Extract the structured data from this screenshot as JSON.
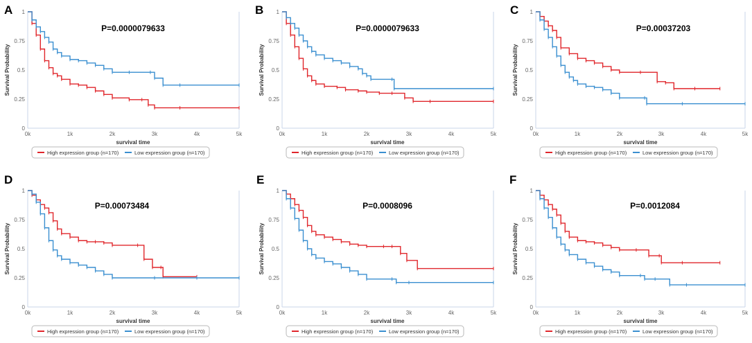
{
  "figure": {
    "colors": {
      "high": "#e0262b",
      "low": "#3a8fd0",
      "axis": "#c9d6e8",
      "tick_text": "#666666",
      "label_text": "#333333"
    },
    "panels": [
      {
        "label": "A",
        "p_value": "P=0.0000079633",
        "ylabel": "Survival Probability",
        "xlabel": "survival time",
        "x_ticks": [
          "0k",
          "1k",
          "2k",
          "3k",
          "4k",
          "5k"
        ],
        "y_ticks": [
          "0",
          "0.25",
          "0.5",
          "0.75",
          "1"
        ],
        "legend": {
          "high": "High expression group (n=170)",
          "low": "Low expression group (n=170)"
        }
      },
      {
        "label": "B",
        "p_value": "P=0.0000079633",
        "ylabel": "Survival Probability",
        "xlabel": "survival time",
        "x_ticks": [
          "0k",
          "1k",
          "2k",
          "3k",
          "4k",
          "5k"
        ],
        "y_ticks": [
          "0",
          "0.25",
          "0.5",
          "0.75",
          "1"
        ],
        "legend": {
          "high": "High expression group (n=170)",
          "low": "Low expression group (n=170)"
        }
      },
      {
        "label": "C",
        "p_value": "P=0.00037203",
        "ylabel": "Survival Probability",
        "xlabel": "survival time",
        "x_ticks": [
          "0k",
          "1k",
          "2k",
          "3k",
          "4k",
          "5k"
        ],
        "y_ticks": [
          "0",
          "0.25",
          "0.5",
          "0.75",
          "1"
        ],
        "legend": {
          "high": "High expression group (n=170)",
          "low": "Low expression group (n=170)"
        }
      },
      {
        "label": "D",
        "p_value": "P=0.00073484",
        "ylabel": "Survival Probability",
        "xlabel": "survival time",
        "x_ticks": [
          "0k",
          "1k",
          "2k",
          "3k",
          "4k",
          "5k"
        ],
        "y_ticks": [
          "0",
          "0.25",
          "0.5",
          "0.75",
          "1"
        ],
        "legend": {
          "high": "High expression group (n=170)",
          "low": "Low expression group (n=170)"
        }
      },
      {
        "label": "E",
        "p_value": "P=0.0008096",
        "ylabel": "Survival Probability",
        "xlabel": "survival time",
        "x_ticks": [
          "0k",
          "1k",
          "2k",
          "3k",
          "4k",
          "5k"
        ],
        "y_ticks": [
          "0",
          "0.25",
          "0.5",
          "0.75",
          "1"
        ],
        "legend": {
          "high": "High expression group (n=170)",
          "low": "Low expression group (n=170)"
        }
      },
      {
        "label": "F",
        "p_value": "P=0.0012084",
        "ylabel": "Survival Probability",
        "xlabel": "survival time",
        "x_ticks": [
          "0k",
          "1k",
          "2k",
          "3k",
          "4k",
          "5k"
        ],
        "y_ticks": [
          "0",
          "0.25",
          "0.5",
          "0.75",
          "1"
        ],
        "legend": {
          "high": "High expression group (n=170)",
          "low": "Low expression group (n=170)"
        }
      }
    ]
  },
  "chart_data": [
    {
      "type": "line",
      "title": "P=0.0000079633",
      "xlabel": "survival time",
      "ylabel": "Survival Probability",
      "xlim": [
        0,
        5000
      ],
      "ylim": [
        0,
        1
      ],
      "series": [
        {
          "name": "High expression group (n=170)",
          "x": [
            0,
            100,
            200,
            300,
            400,
            500,
            600,
            700,
            800,
            1000,
            1200,
            1400,
            1600,
            1800,
            2000,
            2400,
            2700,
            2850,
            3000,
            3600,
            5000
          ],
          "values": [
            1,
            0.9,
            0.8,
            0.68,
            0.58,
            0.52,
            0.47,
            0.45,
            0.42,
            0.38,
            0.37,
            0.35,
            0.32,
            0.29,
            0.26,
            0.245,
            0.245,
            0.2,
            0.175,
            0.175,
            0.175
          ]
        },
        {
          "name": "Low expression group (n=170)",
          "x": [
            0,
            100,
            200,
            300,
            400,
            500,
            600,
            700,
            800,
            1000,
            1200,
            1400,
            1600,
            1800,
            2000,
            2400,
            2900,
            3000,
            3200,
            3600,
            5000
          ],
          "values": [
            1,
            0.93,
            0.87,
            0.83,
            0.78,
            0.74,
            0.68,
            0.65,
            0.62,
            0.59,
            0.58,
            0.56,
            0.54,
            0.51,
            0.48,
            0.48,
            0.48,
            0.43,
            0.37,
            0.37,
            0.37
          ]
        }
      ]
    },
    {
      "type": "line",
      "title": "P=0.0000079633",
      "xlabel": "survival time",
      "ylabel": "Survival Probability",
      "xlim": [
        0,
        5000
      ],
      "ylim": [
        0,
        1
      ],
      "series": [
        {
          "name": "High expression group (n=170)",
          "x": [
            0,
            100,
            200,
            300,
            400,
            500,
            600,
            700,
            800,
            1000,
            1300,
            1500,
            1800,
            2000,
            2300,
            2600,
            2900,
            3100,
            3500,
            5000
          ],
          "values": [
            1,
            0.9,
            0.8,
            0.7,
            0.6,
            0.51,
            0.45,
            0.41,
            0.38,
            0.36,
            0.35,
            0.33,
            0.32,
            0.31,
            0.3,
            0.3,
            0.26,
            0.23,
            0.23,
            0.23
          ]
        },
        {
          "name": "Low expression group (n=170)",
          "x": [
            0,
            100,
            200,
            300,
            400,
            500,
            600,
            700,
            800,
            1000,
            1200,
            1400,
            1600,
            1800,
            1900,
            2000,
            2100,
            2600,
            2650,
            5000
          ],
          "values": [
            1,
            0.95,
            0.9,
            0.86,
            0.8,
            0.75,
            0.7,
            0.66,
            0.63,
            0.6,
            0.58,
            0.56,
            0.53,
            0.51,
            0.47,
            0.45,
            0.42,
            0.42,
            0.34,
            0.34
          ]
        }
      ]
    },
    {
      "type": "line",
      "title": "P=0.00037203",
      "xlabel": "survival time",
      "ylabel": "Survival Probability",
      "xlim": [
        0,
        5000
      ],
      "ylim": [
        0,
        1
      ],
      "series": [
        {
          "name": "High expression group (n=170)",
          "x": [
            0,
            100,
            200,
            300,
            400,
            500,
            600,
            800,
            1000,
            1200,
            1400,
            1600,
            1800,
            2000,
            2500,
            2900,
            3100,
            3300,
            3800,
            4400
          ],
          "values": [
            1,
            0.96,
            0.92,
            0.88,
            0.84,
            0.78,
            0.69,
            0.64,
            0.6,
            0.58,
            0.56,
            0.53,
            0.5,
            0.48,
            0.48,
            0.4,
            0.39,
            0.34,
            0.34,
            0.34
          ]
        },
        {
          "name": "Low expression group (n=170)",
          "x": [
            0,
            100,
            200,
            300,
            400,
            500,
            600,
            700,
            800,
            900,
            1000,
            1200,
            1400,
            1600,
            1800,
            2000,
            2600,
            2650,
            3500,
            5000
          ],
          "values": [
            1,
            0.93,
            0.85,
            0.78,
            0.7,
            0.62,
            0.54,
            0.48,
            0.44,
            0.41,
            0.38,
            0.36,
            0.35,
            0.33,
            0.3,
            0.26,
            0.26,
            0.21,
            0.21,
            0.21
          ]
        }
      ]
    },
    {
      "type": "line",
      "title": "P=0.00073484",
      "xlabel": "survival time",
      "ylabel": "Survival Probability",
      "xlim": [
        0,
        5000
      ],
      "ylim": [
        0,
        1
      ],
      "series": [
        {
          "name": "High expression group (n=170)",
          "x": [
            0,
            100,
            200,
            300,
            400,
            500,
            600,
            700,
            800,
            1000,
            1200,
            1400,
            1600,
            1800,
            2000,
            2600,
            2750,
            2950,
            3150,
            3200,
            4000
          ],
          "values": [
            1,
            0.96,
            0.92,
            0.88,
            0.85,
            0.81,
            0.74,
            0.67,
            0.63,
            0.6,
            0.57,
            0.56,
            0.56,
            0.55,
            0.53,
            0.53,
            0.41,
            0.34,
            0.34,
            0.26,
            0.26
          ]
        },
        {
          "name": "Low expression group (n=170)",
          "x": [
            0,
            100,
            200,
            300,
            400,
            500,
            600,
            700,
            800,
            1000,
            1200,
            1400,
            1600,
            1800,
            2000,
            3000,
            4000,
            5000
          ],
          "values": [
            1,
            0.97,
            0.9,
            0.8,
            0.68,
            0.57,
            0.49,
            0.44,
            0.41,
            0.38,
            0.36,
            0.34,
            0.31,
            0.28,
            0.25,
            0.25,
            0.25,
            0.25
          ]
        }
      ]
    },
    {
      "type": "line",
      "title": "P=0.0008096",
      "xlabel": "survival time",
      "ylabel": "Survival Probability",
      "xlim": [
        0,
        5000
      ],
      "ylim": [
        0,
        1
      ],
      "series": [
        {
          "name": "High expression group (n=170)",
          "x": [
            0,
            100,
            200,
            300,
            400,
            500,
            600,
            700,
            800,
            1000,
            1200,
            1400,
            1600,
            1800,
            2000,
            2400,
            2600,
            2800,
            2950,
            3200,
            5000
          ],
          "values": [
            1,
            0.97,
            0.93,
            0.88,
            0.83,
            0.77,
            0.7,
            0.65,
            0.62,
            0.6,
            0.58,
            0.56,
            0.54,
            0.53,
            0.52,
            0.52,
            0.52,
            0.46,
            0.4,
            0.33,
            0.33
          ]
        },
        {
          "name": "Low expression group (n=170)",
          "x": [
            0,
            100,
            200,
            300,
            400,
            500,
            600,
            700,
            800,
            1000,
            1200,
            1400,
            1600,
            1800,
            2000,
            2600,
            2700,
            3000,
            5000
          ],
          "values": [
            1,
            0.93,
            0.85,
            0.76,
            0.66,
            0.57,
            0.5,
            0.45,
            0.42,
            0.39,
            0.37,
            0.34,
            0.31,
            0.28,
            0.24,
            0.24,
            0.21,
            0.21,
            0.21
          ]
        }
      ]
    },
    {
      "type": "line",
      "title": "P=0.0012084",
      "xlabel": "survival time",
      "ylabel": "Survival Probability",
      "xlim": [
        0,
        5000
      ],
      "ylim": [
        0,
        1
      ],
      "series": [
        {
          "name": "High expression group (n=170)",
          "x": [
            0,
            100,
            200,
            300,
            400,
            500,
            600,
            700,
            800,
            1000,
            1200,
            1400,
            1600,
            1800,
            2000,
            2400,
            2700,
            2950,
            3000,
            3500,
            4400
          ],
          "values": [
            1,
            0.96,
            0.92,
            0.88,
            0.84,
            0.79,
            0.72,
            0.65,
            0.6,
            0.57,
            0.56,
            0.55,
            0.53,
            0.51,
            0.49,
            0.49,
            0.44,
            0.44,
            0.38,
            0.38,
            0.38
          ]
        },
        {
          "name": "Low expression group (n=170)",
          "x": [
            0,
            100,
            200,
            300,
            400,
            500,
            600,
            700,
            800,
            1000,
            1200,
            1400,
            1600,
            1800,
            2000,
            2500,
            2600,
            2850,
            3200,
            3600,
            5000
          ],
          "values": [
            1,
            0.93,
            0.85,
            0.77,
            0.68,
            0.6,
            0.54,
            0.49,
            0.45,
            0.41,
            0.38,
            0.35,
            0.32,
            0.3,
            0.27,
            0.27,
            0.24,
            0.24,
            0.19,
            0.19,
            0.19
          ]
        }
      ]
    }
  ]
}
